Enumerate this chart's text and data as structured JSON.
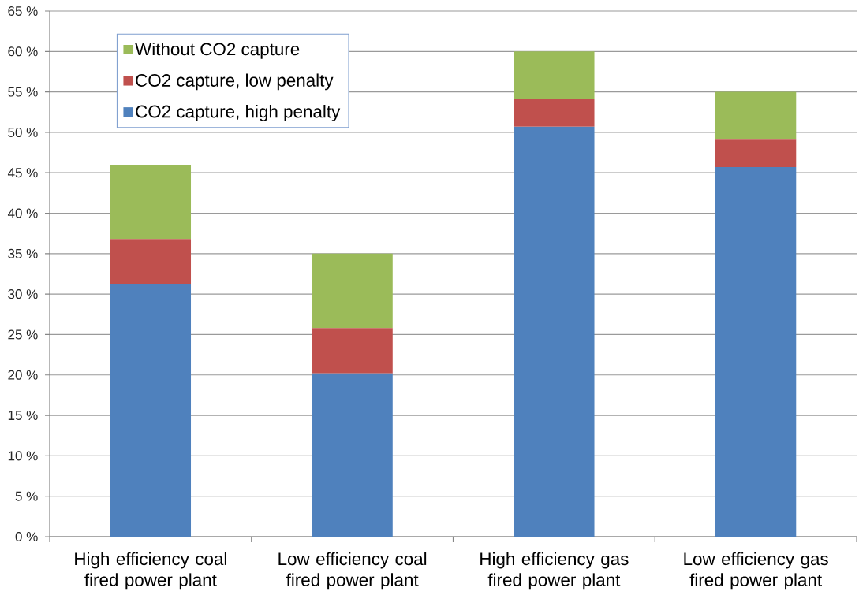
{
  "chart_data": {
    "type": "bar",
    "stacked": true,
    "categories": [
      "High efficiency coal fired power plant",
      "Low efficiency coal fired power plant",
      "High efficiency gas fired power plant",
      "Low efficiency gas fired power plant"
    ],
    "series": [
      {
        "name": "CO2 capture, high penalty",
        "color": "#4f81bd",
        "values": [
          31.2,
          20.2,
          50.7,
          45.7
        ]
      },
      {
        "name": "CO2 capture, low penalty",
        "color": "#c0504d",
        "values": [
          5.6,
          5.6,
          3.4,
          3.4
        ]
      },
      {
        "name": "Without CO2 capture",
        "color": "#9bbb59",
        "values": [
          9.2,
          9.2,
          5.9,
          5.9
        ]
      }
    ],
    "ylim": [
      0,
      65
    ],
    "yticks": [
      {
        "value": 0,
        "label": "0 %"
      },
      {
        "value": 5,
        "label": "5 %"
      },
      {
        "value": 10,
        "label": "10 %"
      },
      {
        "value": 15,
        "label": "15 %"
      },
      {
        "value": 20,
        "label": "20 %"
      },
      {
        "value": 25,
        "label": "25 %"
      },
      {
        "value": 30,
        "label": "30 %"
      },
      {
        "value": 35,
        "label": "35 %"
      },
      {
        "value": 40,
        "label": "40 %"
      },
      {
        "value": 45,
        "label": "45 %"
      },
      {
        "value": 50,
        "label": "50 %"
      },
      {
        "value": 55,
        "label": "55 %"
      },
      {
        "value": 60,
        "label": "60 %"
      },
      {
        "value": 65,
        "label": "65 %"
      }
    ],
    "grid": "y",
    "legend": "top left"
  }
}
